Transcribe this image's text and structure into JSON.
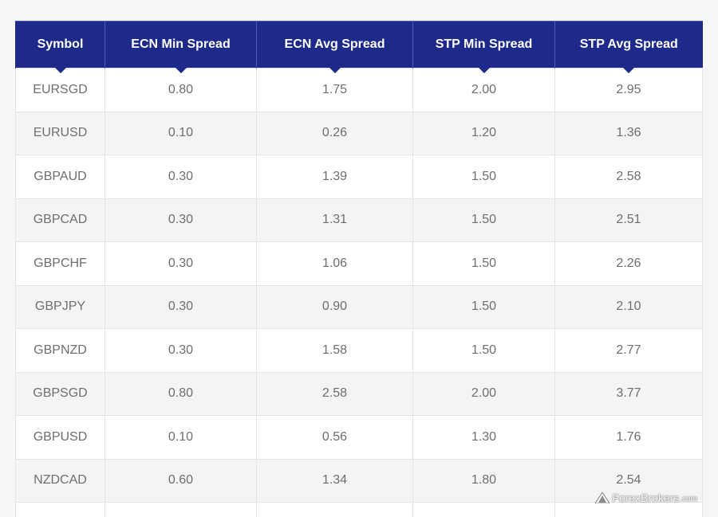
{
  "table": {
    "headers": [
      "Symbol",
      "ECN Min Spread",
      "ECN Avg Spread",
      "STP Min Spread",
      "STP Avg Spread"
    ],
    "rows": [
      [
        "EURSGD",
        "0.80",
        "1.75",
        "2.00",
        "2.95"
      ],
      [
        "EURUSD",
        "0.10",
        "0.26",
        "1.20",
        "1.36"
      ],
      [
        "GBPAUD",
        "0.30",
        "1.39",
        "1.50",
        "2.58"
      ],
      [
        "GBPCAD",
        "0.30",
        "1.31",
        "1.50",
        "2.51"
      ],
      [
        "GBPCHF",
        "0.30",
        "1.06",
        "1.50",
        "2.26"
      ],
      [
        "GBPJPY",
        "0.30",
        "0.90",
        "1.50",
        "2.10"
      ],
      [
        "GBPNZD",
        "0.30",
        "1.58",
        "1.50",
        "2.77"
      ],
      [
        "GBPSGD",
        "0.80",
        "2.58",
        "2.00",
        "3.77"
      ],
      [
        "GBPUSD",
        "0.10",
        "0.56",
        "1.30",
        "1.76"
      ],
      [
        "NZDCAD",
        "0.60",
        "1.34",
        "1.80",
        "2.54"
      ]
    ]
  },
  "watermark": {
    "name": "ForexBrokers",
    "suffix": ".com",
    "icon": "forexbrokers-logo-icon"
  },
  "colors": {
    "header_bg": "#1d2a8a",
    "header_text": "#ffffff",
    "cell_text": "#6e6e6e",
    "stripe": "#f4f4f4"
  }
}
